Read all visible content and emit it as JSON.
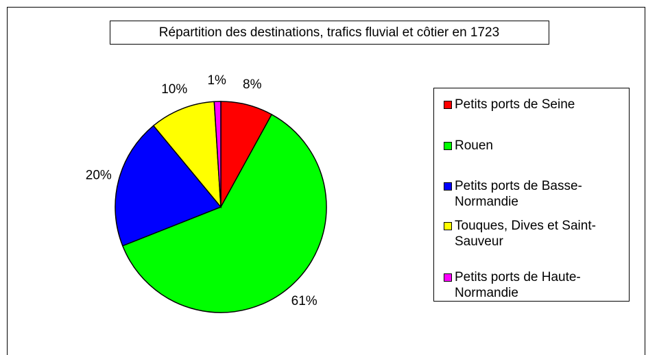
{
  "chart_data": {
    "type": "pie",
    "title": "Répartition des destinations, trafics fluvial et côtier en 1723",
    "categories": [
      "Petits ports de Seine",
      "Rouen",
      "Petits ports de Basse-Normandie",
      "Touques, Dives et Saint-Sauveur",
      "Petits ports de Haute-Normandie"
    ],
    "values": [
      8,
      61,
      20,
      10,
      1
    ],
    "value_labels": [
      "8%",
      "61%",
      "20%",
      "10%",
      "1%"
    ],
    "colors": [
      "#ff0000",
      "#00ff00",
      "#0000ff",
      "#ffff00",
      "#ff00ff"
    ],
    "legend": "right"
  }
}
